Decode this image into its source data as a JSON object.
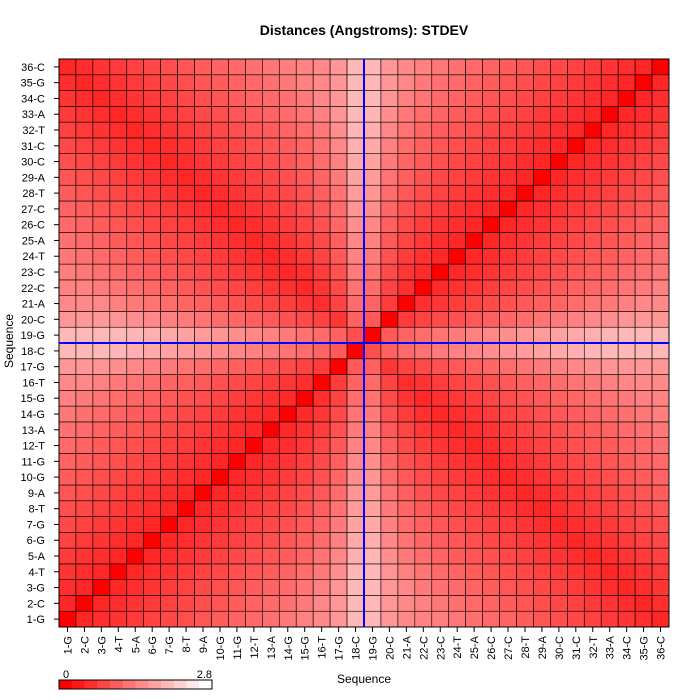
{
  "chart_data": {
    "type": "heatmap",
    "title": "Distances (Angstroms):  STDEV",
    "xlabel": "Sequence",
    "ylabel": "Sequence",
    "categories": [
      "1-G",
      "2-C",
      "3-G",
      "4-T",
      "5-A",
      "6-G",
      "7-G",
      "8-T",
      "9-A",
      "10-G",
      "11-G",
      "12-T",
      "13-A",
      "14-G",
      "15-G",
      "16-T",
      "17-G",
      "18-C",
      "19-G",
      "20-C",
      "21-A",
      "22-C",
      "23-C",
      "24-T",
      "25-A",
      "26-C",
      "27-C",
      "28-T",
      "29-A",
      "30-C",
      "31-C",
      "32-T",
      "33-A",
      "34-C",
      "35-G",
      "36-C"
    ],
    "x": [
      "1-G",
      "2-C",
      "3-G",
      "4-T",
      "5-A",
      "6-G",
      "7-G",
      "8-T",
      "9-A",
      "10-G",
      "11-G",
      "12-T",
      "13-A",
      "14-G",
      "15-G",
      "16-T",
      "17-G",
      "18-C",
      "19-G",
      "20-C",
      "21-A",
      "22-C",
      "23-C",
      "24-T",
      "25-A",
      "26-C",
      "27-C",
      "28-T",
      "29-A",
      "30-C",
      "31-C",
      "32-T",
      "33-A",
      "34-C",
      "35-G",
      "36-C"
    ],
    "y": [
      "1-G",
      "2-C",
      "3-G",
      "4-T",
      "5-A",
      "6-G",
      "7-G",
      "8-T",
      "9-A",
      "10-G",
      "11-G",
      "12-T",
      "13-A",
      "14-G",
      "15-G",
      "16-T",
      "17-G",
      "18-C",
      "19-G",
      "20-C",
      "21-A",
      "22-C",
      "23-C",
      "24-T",
      "25-A",
      "26-C",
      "27-C",
      "28-T",
      "29-A",
      "30-C",
      "31-C",
      "32-T",
      "33-A",
      "34-C",
      "35-G",
      "36-C"
    ],
    "value_range": [
      0,
      2.8
    ],
    "colorbar": {
      "min_label": "0",
      "max_label": "2.8",
      "low_color": "#ff0000",
      "high_color": "#ffffff"
    },
    "highlight_lines": {
      "row": "18-C",
      "column": "19-G",
      "color": "#0000ff"
    },
    "legend_placement": "bottom-left",
    "grid": true
  }
}
